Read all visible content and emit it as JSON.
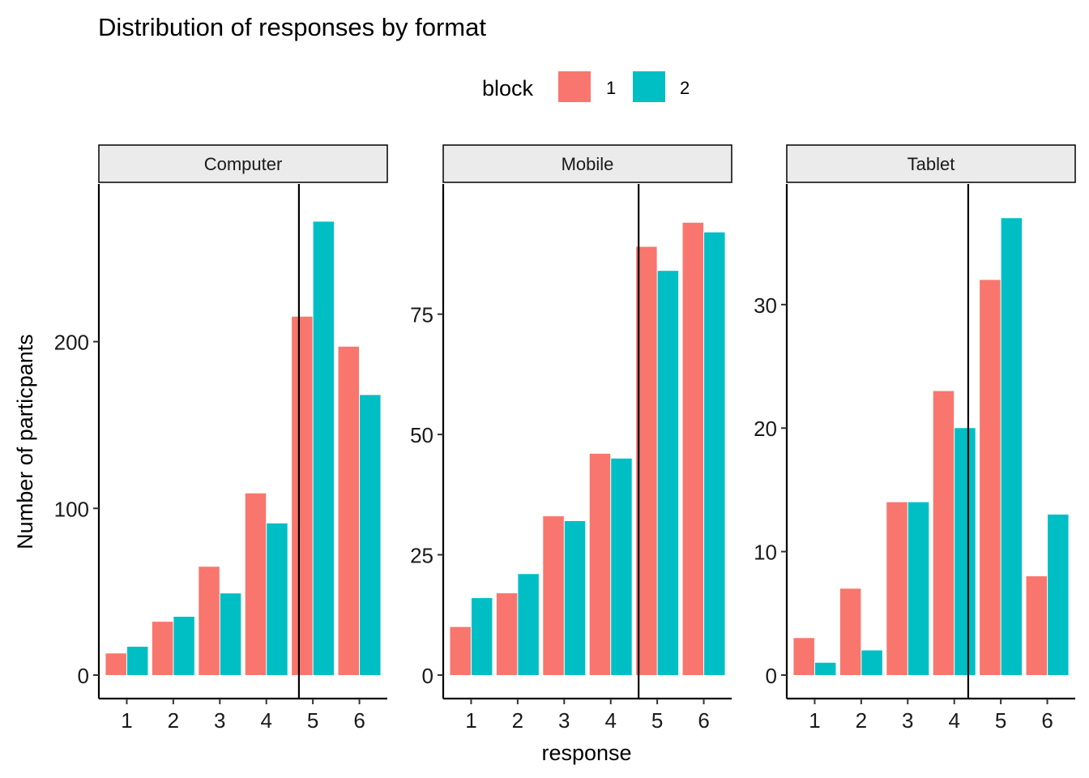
{
  "title": "Distribution of responses by format",
  "legend": {
    "title": "block",
    "placement": "top",
    "items": [
      {
        "label": "1",
        "color": "#F8766D"
      },
      {
        "label": "2",
        "color": "#00BFC4"
      }
    ]
  },
  "xlabel": "response",
  "ylabel": "Number of particpants",
  "chart_data": {
    "type": "bar",
    "grouped": true,
    "grid": false,
    "legend_placement": "top",
    "title": "Distribution of responses by format",
    "xlabel": "response",
    "ylabel": "Number of particpants",
    "categories": [
      "1",
      "2",
      "3",
      "4",
      "5",
      "6"
    ],
    "facets": [
      {
        "name": "Computer",
        "ylim": [
          0,
          280
        ],
        "yticks": [
          0,
          100,
          200
        ],
        "vline": 4.7,
        "series": [
          {
            "name": "1",
            "color": "#F8766D",
            "values": [
              13,
              32,
              65,
              109,
              215,
              197
            ]
          },
          {
            "name": "2",
            "color": "#00BFC4",
            "values": [
              17,
              35,
              49,
              91,
              272,
              168
            ]
          }
        ]
      },
      {
        "name": "Mobile",
        "ylim": [
          0,
          97
        ],
        "yticks": [
          0,
          25,
          50,
          75
        ],
        "vline": 4.6,
        "series": [
          {
            "name": "1",
            "color": "#F8766D",
            "values": [
              10,
              17,
              33,
              46,
              89,
              94
            ]
          },
          {
            "name": "2",
            "color": "#00BFC4",
            "values": [
              16,
              21,
              32,
              45,
              84,
              92
            ]
          }
        ]
      },
      {
        "name": "Tablet",
        "ylim": [
          0,
          37.8
        ],
        "yticks": [
          0,
          10,
          20,
          30
        ],
        "vline": 4.3,
        "series": [
          {
            "name": "1",
            "color": "#F8766D",
            "values": [
              3,
              7,
              14,
              23,
              32,
              8
            ]
          },
          {
            "name": "2",
            "color": "#00BFC4",
            "values": [
              1,
              2,
              14,
              20,
              37,
              13
            ]
          }
        ]
      }
    ]
  }
}
